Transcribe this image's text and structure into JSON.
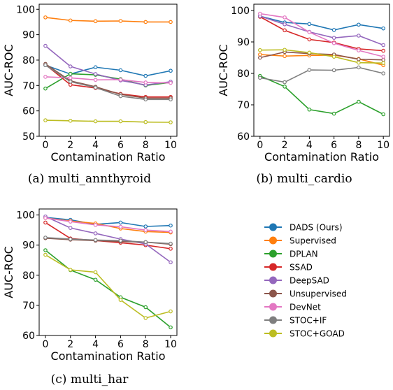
{
  "x_ticks": [
    0,
    2,
    4,
    6,
    8,
    10
  ],
  "legend": {
    "placement": "lower-right",
    "entries": [
      {
        "name": "DADS (Ours)",
        "color": "#1f77b4"
      },
      {
        "name": "Supervised",
        "color": "#ff7f0e"
      },
      {
        "name": "DPLAN",
        "color": "#2ca02c"
      },
      {
        "name": "SSAD",
        "color": "#d62728"
      },
      {
        "name": "DeepSAD",
        "color": "#9467bd"
      },
      {
        "name": "Unsupervised",
        "color": "#8c564b"
      },
      {
        "name": "DevNet",
        "color": "#e377c2"
      },
      {
        "name": "STOC+IF",
        "color": "#7f7f7f"
      },
      {
        "name": "STOC+GOAD",
        "color": "#bcbd22"
      }
    ]
  },
  "chart_data": [
    {
      "type": "line",
      "caption": "(a)  multi_annthyroid",
      "xlabel": "Contamination Ratio",
      "ylabel": "AUC-ROC",
      "x": [
        0,
        2,
        4,
        6,
        8,
        10
      ],
      "xlim": [
        -0.5,
        10.5
      ],
      "ylim": [
        50,
        102
      ],
      "yticks": [
        50,
        60,
        70,
        80,
        90,
        100
      ],
      "series": [
        {
          "name": "DADS (Ours)",
          "values": [
            78.0,
            74.5,
            77.2,
            76.0,
            73.8,
            75.8
          ]
        },
        {
          "name": "Supervised",
          "values": [
            96.8,
            95.6,
            95.3,
            95.4,
            95.0,
            95.0
          ]
        },
        {
          "name": "DPLAN",
          "values": [
            68.8,
            74.6,
            74.2,
            72.5,
            70.0,
            71.2
          ]
        },
        {
          "name": "SSAD",
          "values": [
            78.2,
            70.3,
            69.0,
            66.7,
            65.5,
            65.5
          ]
        },
        {
          "name": "DeepSAD",
          "values": [
            85.6,
            77.5,
            74.5,
            72.0,
            70.2,
            71.5
          ]
        },
        {
          "name": "Unsupervised",
          "values": [
            78.5,
            71.8,
            69.5,
            66.5,
            65.0,
            65.0
          ]
        },
        {
          "name": "DevNet",
          "values": [
            73.4,
            73.0,
            72.2,
            72.3,
            71.2,
            71.0
          ]
        },
        {
          "name": "STOC+IF",
          "values": [
            78.0,
            71.5,
            69.2,
            65.8,
            64.5,
            64.5
          ]
        },
        {
          "name": "STOC+GOAD",
          "values": [
            56.3,
            56.1,
            55.9,
            55.9,
            55.6,
            55.5
          ]
        }
      ]
    },
    {
      "type": "line",
      "caption": "(b)  multi_cardio",
      "xlabel": "Contamination Ratio",
      "ylabel": "AUC-ROC",
      "x": [
        0,
        2,
        4,
        6,
        8,
        10
      ],
      "xlim": [
        -0.5,
        10.5
      ],
      "ylim": [
        60,
        102
      ],
      "yticks": [
        60,
        70,
        80,
        90,
        100
      ],
      "series": [
        {
          "name": "DADS (Ours)",
          "values": [
            98.2,
            96.2,
            95.7,
            93.8,
            95.5,
            94.3
          ]
        },
        {
          "name": "Supervised",
          "values": [
            86.0,
            85.5,
            85.7,
            85.8,
            84.6,
            82.6
          ]
        },
        {
          "name": "DPLAN",
          "values": [
            79.2,
            75.8,
            68.5,
            67.2,
            71.0,
            67.0
          ]
        },
        {
          "name": "SSAD",
          "values": [
            98.0,
            93.7,
            90.8,
            89.8,
            87.8,
            87.2
          ]
        },
        {
          "name": "DeepSAD",
          "values": [
            98.2,
            95.6,
            93.2,
            91.3,
            92.0,
            89.0
          ]
        },
        {
          "name": "Unsupervised",
          "values": [
            85.0,
            86.8,
            86.3,
            86.0,
            84.5,
            84.3
          ]
        },
        {
          "name": "DevNet",
          "values": [
            99.0,
            97.8,
            93.1,
            89.6,
            87.3,
            85.3
          ]
        },
        {
          "name": "STOC+IF",
          "values": [
            78.6,
            77.2,
            81.1,
            81.0,
            81.9,
            80.0
          ]
        },
        {
          "name": "STOC+GOAD",
          "values": [
            87.4,
            87.5,
            86.6,
            85.3,
            83.4,
            83.3
          ]
        }
      ]
    },
    {
      "type": "line",
      "caption": "(c)  multi_har",
      "xlabel": "Contamination Ratio",
      "ylabel": "AUC-ROC",
      "x": [
        0,
        2,
        4,
        6,
        8,
        10
      ],
      "xlim": [
        -0.5,
        10.5
      ],
      "ylim": [
        60,
        102
      ],
      "yticks": [
        60,
        70,
        80,
        90,
        100
      ],
      "series": [
        {
          "name": "DADS (Ours)",
          "values": [
            99.2,
            98.4,
            96.9,
            97.5,
            96.2,
            96.5
          ]
        },
        {
          "name": "Supervised",
          "values": [
            99.0,
            98.0,
            97.2,
            95.5,
            94.5,
            94.2
          ]
        },
        {
          "name": "DPLAN",
          "values": [
            88.3,
            81.7,
            78.5,
            72.7,
            69.4,
            62.7
          ]
        },
        {
          "name": "SSAD",
          "values": [
            97.5,
            92.2,
            91.5,
            90.8,
            90.0,
            88.8
          ]
        },
        {
          "name": "DeepSAD",
          "values": [
            99.5,
            95.7,
            93.9,
            92.0,
            90.4,
            84.3
          ]
        },
        {
          "name": "Unsupervised",
          "values": [
            92.3,
            91.8,
            91.5,
            91.2,
            91.0,
            90.3
          ]
        },
        {
          "name": "DevNet",
          "values": [
            99.0,
            97.8,
            96.7,
            96.1,
            95.0,
            94.5
          ]
        },
        {
          "name": "STOC+IF",
          "values": [
            92.5,
            92.0,
            91.7,
            91.5,
            91.0,
            90.5
          ]
        },
        {
          "name": "STOC+GOAD",
          "values": [
            86.8,
            81.8,
            81.0,
            71.8,
            65.8,
            68.0
          ]
        }
      ]
    }
  ]
}
